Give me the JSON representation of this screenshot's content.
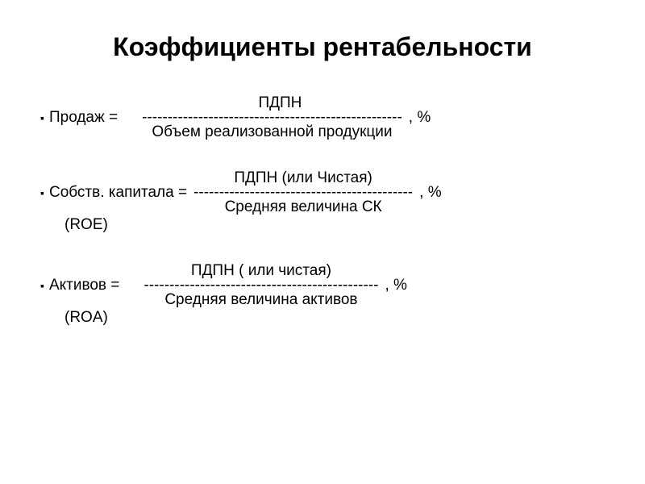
{
  "title": "Коэффициенты рентабельности",
  "formulas": [
    {
      "label": "Продаж  =",
      "numerator": "ПДПН",
      "dashes": "---------------------------------------------------",
      "denominator": "Объем реализованной продукции",
      "sublabel": "",
      "sublabel_right": "",
      "percent": ", %"
    },
    {
      "label": "Собств. капитала =",
      "numerator": "ПДПН (или Чистая)",
      "dashes": "-------------------------------------------",
      "denominator": "Средняя величина СК",
      "sublabel": "(ROE)",
      "sublabel_right": "",
      "percent": ", %"
    },
    {
      "label": "Активов   =",
      "numerator": "ПДПН ( или чистая)",
      "dashes": "----------------------------------------------",
      "denominator": "Средняя величина активов",
      "sublabel": "(ROA)",
      "sublabel_right": "",
      "percent": " , %"
    }
  ],
  "bullet": "▪",
  "colors": {
    "text": "#000000",
    "background": "#ffffff"
  }
}
